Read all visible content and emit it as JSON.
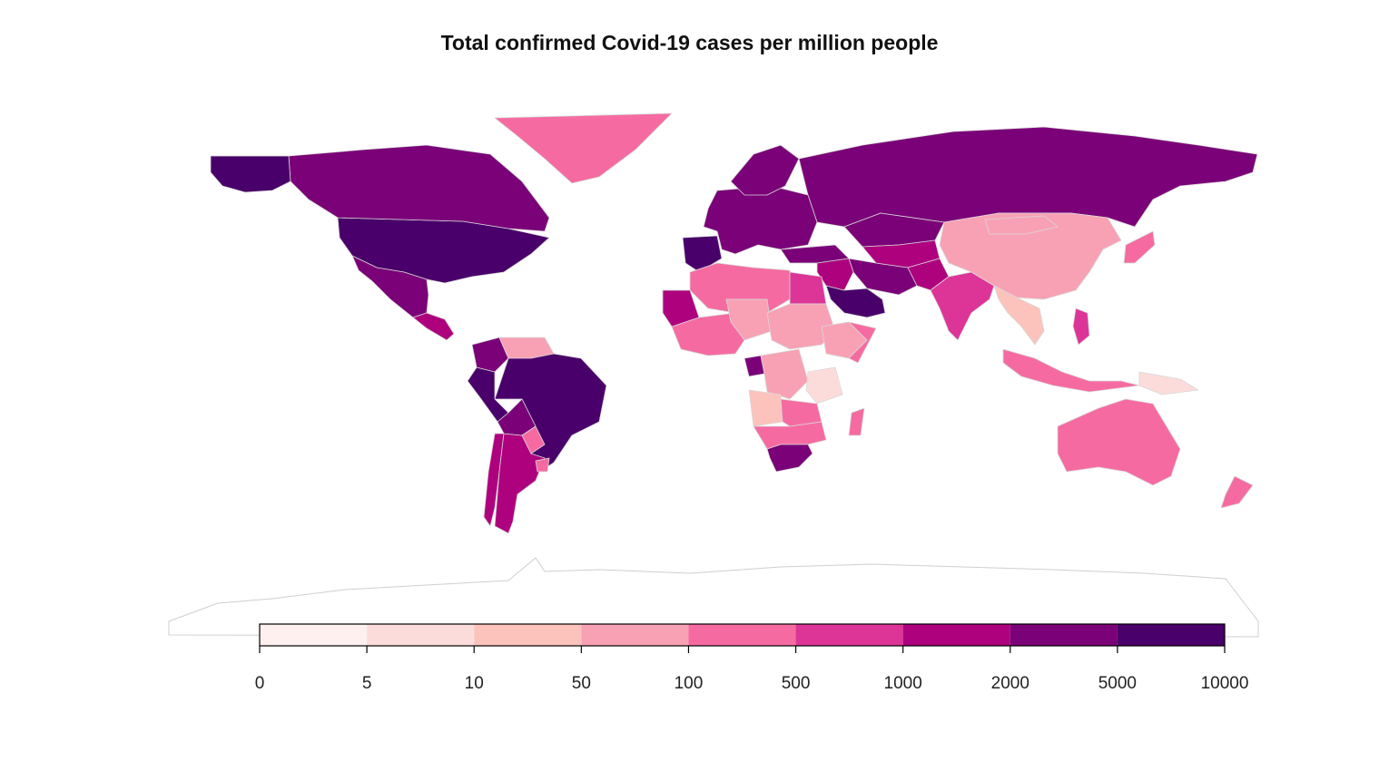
{
  "title": "Total confirmed Covid-19 cases per million people",
  "chart_data": {
    "type": "choropleth",
    "title": "Total confirmed Covid-19 cases per million people",
    "legend": {
      "placement": "bottom",
      "breaks": [
        "0",
        "5",
        "10",
        "50",
        "100",
        "500",
        "1000",
        "2000",
        "5000",
        "10000"
      ],
      "colors": [
        "#fdf0ef",
        "#fcdcdb",
        "#fbc3bc",
        "#f8a1b4",
        "#f56ba1",
        "#dd3497",
        "#ae017e",
        "#7a0177",
        "#49006a"
      ]
    },
    "regions": [
      {
        "name": "United States",
        "bin": 8
      },
      {
        "name": "Canada",
        "bin": 7
      },
      {
        "name": "Alaska",
        "bin": 8
      },
      {
        "name": "Greenland",
        "bin": 4
      },
      {
        "name": "Mexico",
        "bin": 7
      },
      {
        "name": "Central America",
        "bin": 6
      },
      {
        "name": "Brazil",
        "bin": 8
      },
      {
        "name": "Peru",
        "bin": 8
      },
      {
        "name": "Chile",
        "bin": 6
      },
      {
        "name": "Argentina",
        "bin": 6
      },
      {
        "name": "Colombia",
        "bin": 7
      },
      {
        "name": "Venezuela",
        "bin": 3
      },
      {
        "name": "Bolivia",
        "bin": 7
      },
      {
        "name": "Paraguay",
        "bin": 4
      },
      {
        "name": "Uruguay",
        "bin": 4
      },
      {
        "name": "Russia",
        "bin": 7
      },
      {
        "name": "Europe",
        "bin": 7
      },
      {
        "name": "Scandinavia",
        "bin": 7
      },
      {
        "name": "Iberia",
        "bin": 8
      },
      {
        "name": "Turkey",
        "bin": 7
      },
      {
        "name": "Iran",
        "bin": 7
      },
      {
        "name": "Kazakhstan",
        "bin": 7
      },
      {
        "name": "Central Asia",
        "bin": 6
      },
      {
        "name": "Saudi Arabia",
        "bin": 8
      },
      {
        "name": "Middle East",
        "bin": 6
      },
      {
        "name": "Egypt",
        "bin": 5
      },
      {
        "name": "Pakistan",
        "bin": 6
      },
      {
        "name": "India",
        "bin": 5
      },
      {
        "name": "China",
        "bin": 3
      },
      {
        "name": "Mongolia",
        "bin": 3
      },
      {
        "name": "Southeast Asia",
        "bin": 2
      },
      {
        "name": "Japan",
        "bin": 4
      },
      {
        "name": "Indonesia",
        "bin": 4
      },
      {
        "name": "Philippines",
        "bin": 5
      },
      {
        "name": "Papua New Guinea",
        "bin": 1
      },
      {
        "name": "Australia",
        "bin": 4
      },
      {
        "name": "New Zealand",
        "bin": 4
      },
      {
        "name": "North Africa",
        "bin": 4
      },
      {
        "name": "West Africa",
        "bin": 4
      },
      {
        "name": "Mauritania",
        "bin": 6
      },
      {
        "name": "Sahel",
        "bin": 3
      },
      {
        "name": "Central Africa",
        "bin": 3
      },
      {
        "name": "Ethiopia",
        "bin": 3
      },
      {
        "name": "Somalia",
        "bin": 4
      },
      {
        "name": "Gabon",
        "bin": 7
      },
      {
        "name": "DR Congo",
        "bin": 3
      },
      {
        "name": "Tanzania",
        "bin": 1
      },
      {
        "name": "Angola",
        "bin": 2
      },
      {
        "name": "Zambia",
        "bin": 4
      },
      {
        "name": "Southern Africa",
        "bin": 4
      },
      {
        "name": "South Africa",
        "bin": 7
      },
      {
        "name": "Madagascar",
        "bin": 4
      }
    ]
  }
}
